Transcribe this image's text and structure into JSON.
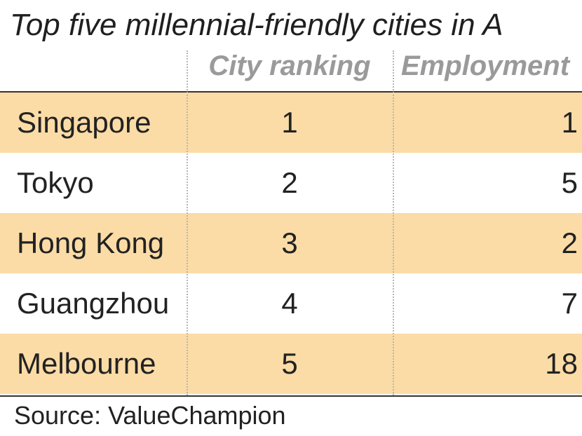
{
  "title": "Top five millennial-friendly cities in A",
  "source": "Source: ValueChampion",
  "colors": {
    "row_shade": "#fbdca6",
    "header_text": "#9a9a9a",
    "text": "#222222",
    "rule": "#333333"
  },
  "chart_data": {
    "type": "table",
    "title": "Top five millennial-friendly cities in A",
    "columns": [
      "",
      "City ranking",
      "Employment"
    ],
    "rows": [
      {
        "city": "Singapore",
        "city_ranking": "1",
        "employment": "1"
      },
      {
        "city": "Tokyo",
        "city_ranking": "2",
        "employment": "5"
      },
      {
        "city": "Hong Kong",
        "city_ranking": "3",
        "employment": "2"
      },
      {
        "city": "Guangzhou",
        "city_ranking": "4",
        "employment": "7"
      },
      {
        "city": "Melbourne",
        "city_ranking": "5",
        "employment": "18"
      }
    ],
    "shaded_rows": [
      0,
      2,
      4
    ],
    "source": "Source: ValueChampion"
  }
}
